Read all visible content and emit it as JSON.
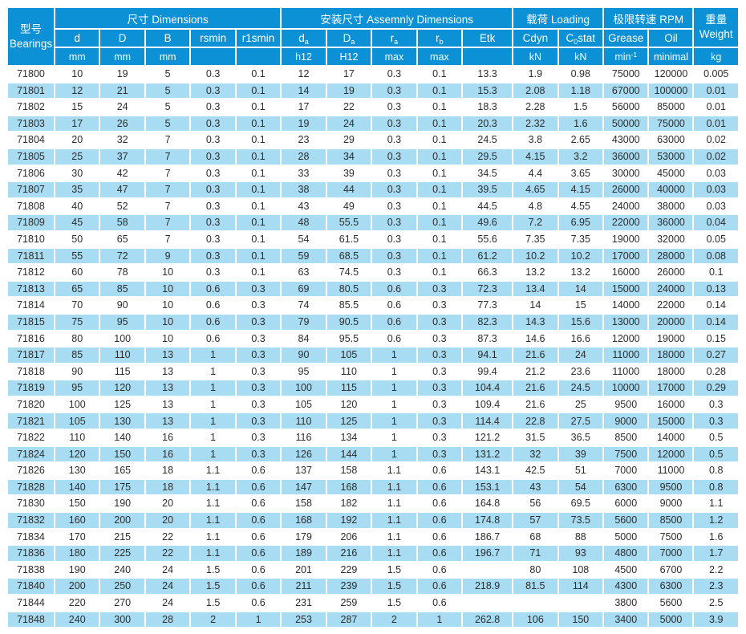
{
  "colors": {
    "header-blue": "#0c91d6",
    "row-alt-blue": "#a8dcf3",
    "header-text": "#ffffff",
    "body-text": "#2d2d2d",
    "page-bg": "#ffffff"
  },
  "header": {
    "model_cn": "型号",
    "model_en": "Bearings",
    "groups": [
      {
        "label": "尺寸 Dimensions"
      },
      {
        "label": "安装尺寸 Assemnly Dimensions"
      },
      {
        "label": "载荷 Loading"
      },
      {
        "label": "极限转速 RPM"
      }
    ],
    "weight_cn": "重量",
    "weight_en": "Weight",
    "weight_unit": "kg",
    "subcols": [
      {
        "id": "d",
        "parts": [
          [
            "t",
            "d"
          ]
        ],
        "unit_parts": [
          [
            "t",
            "mm"
          ]
        ]
      },
      {
        "id": "D",
        "parts": [
          [
            "t",
            "D"
          ]
        ],
        "unit_parts": [
          [
            "t",
            "mm"
          ]
        ]
      },
      {
        "id": "B",
        "parts": [
          [
            "t",
            "B"
          ]
        ],
        "unit_parts": [
          [
            "t",
            "mm"
          ]
        ]
      },
      {
        "id": "rsmin",
        "parts": [
          [
            "t",
            "rsmin"
          ]
        ],
        "unit_parts": []
      },
      {
        "id": "r1smin",
        "parts": [
          [
            "t",
            "r1smin"
          ]
        ],
        "unit_parts": []
      },
      {
        "id": "da",
        "parts": [
          [
            "t",
            "d"
          ],
          [
            "b",
            "a"
          ]
        ],
        "unit_parts": [
          [
            "t",
            "h12"
          ]
        ]
      },
      {
        "id": "Da",
        "parts": [
          [
            "t",
            "D"
          ],
          [
            "b",
            "a"
          ]
        ],
        "unit_parts": [
          [
            "t",
            "H12"
          ]
        ]
      },
      {
        "id": "ra",
        "parts": [
          [
            "t",
            "r"
          ],
          [
            "b",
            "a"
          ]
        ],
        "unit_parts": [
          [
            "t",
            "max"
          ]
        ]
      },
      {
        "id": "rb",
        "parts": [
          [
            "t",
            "r"
          ],
          [
            "b",
            "b"
          ]
        ],
        "unit_parts": [
          [
            "t",
            "max"
          ]
        ]
      },
      {
        "id": "Etk",
        "parts": [
          [
            "t",
            "Etk"
          ]
        ],
        "unit_parts": []
      },
      {
        "id": "Cdyn",
        "parts": [
          [
            "t",
            "Cdyn"
          ]
        ],
        "unit_parts": [
          [
            "t",
            "kN"
          ]
        ]
      },
      {
        "id": "C0stat",
        "parts": [
          [
            "t",
            "C"
          ],
          [
            "b",
            "0"
          ],
          [
            "t",
            "stat"
          ]
        ],
        "unit_parts": [
          [
            "t",
            "kN"
          ]
        ]
      },
      {
        "id": "Grease",
        "parts": [
          [
            "t",
            "Grease"
          ]
        ],
        "unit_parts": [
          [
            "t",
            "min"
          ],
          [
            "p",
            "-1"
          ]
        ]
      },
      {
        "id": "Oil",
        "parts": [
          [
            "t",
            "Oil"
          ]
        ],
        "unit_parts": [
          [
            "t",
            "minimal"
          ]
        ]
      }
    ]
  },
  "rows": [
    [
      "71800",
      "10",
      "19",
      "5",
      "0.3",
      "0.1",
      "12",
      "17",
      "0.3",
      "0.1",
      "13.3",
      "1.9",
      "0.98",
      "75000",
      "120000",
      "0.005"
    ],
    [
      "71801",
      "12",
      "21",
      "5",
      "0.3",
      "0.1",
      "14",
      "19",
      "0.3",
      "0.1",
      "15.3",
      "2.08",
      "1.18",
      "67000",
      "100000",
      "0.01"
    ],
    [
      "71802",
      "15",
      "24",
      "5",
      "0.3",
      "0.1",
      "17",
      "22",
      "0.3",
      "0.1",
      "18.3",
      "2.28",
      "1.5",
      "56000",
      "85000",
      "0.01"
    ],
    [
      "71803",
      "17",
      "26",
      "5",
      "0.3",
      "0.1",
      "19",
      "24",
      "0.3",
      "0.1",
      "20.3",
      "2.32",
      "1.6",
      "50000",
      "75000",
      "0.01"
    ],
    [
      "71804",
      "20",
      "32",
      "7",
      "0.3",
      "0.1",
      "23",
      "29",
      "0.3",
      "0.1",
      "24.5",
      "3.8",
      "2.65",
      "43000",
      "63000",
      "0.02"
    ],
    [
      "71805",
      "25",
      "37",
      "7",
      "0.3",
      "0.1",
      "28",
      "34",
      "0.3",
      "0.1",
      "29.5",
      "4.15",
      "3.2",
      "36000",
      "53000",
      "0.02"
    ],
    [
      "71806",
      "30",
      "42",
      "7",
      "0.3",
      "0.1",
      "33",
      "39",
      "0.3",
      "0.1",
      "34.5",
      "4.4",
      "3.65",
      "30000",
      "45000",
      "0.03"
    ],
    [
      "71807",
      "35",
      "47",
      "7",
      "0.3",
      "0.1",
      "38",
      "44",
      "0.3",
      "0.1",
      "39.5",
      "4.65",
      "4.15",
      "26000",
      "40000",
      "0.03"
    ],
    [
      "71808",
      "40",
      "52",
      "7",
      "0.3",
      "0.1",
      "43",
      "49",
      "0.3",
      "0.1",
      "44.5",
      "4.8",
      "4.55",
      "24000",
      "38000",
      "0.03"
    ],
    [
      "71809",
      "45",
      "58",
      "7",
      "0.3",
      "0.1",
      "48",
      "55.5",
      "0.3",
      "0.1",
      "49.6",
      "7.2",
      "6.95",
      "22000",
      "36000",
      "0.04"
    ],
    [
      "71810",
      "50",
      "65",
      "7",
      "0.3",
      "0.1",
      "54",
      "61.5",
      "0.3",
      "0.1",
      "55.6",
      "7.35",
      "7.35",
      "19000",
      "32000",
      "0.05"
    ],
    [
      "71811",
      "55",
      "72",
      "9",
      "0.3",
      "0.1",
      "59",
      "68.5",
      "0.3",
      "0.1",
      "61.2",
      "10.2",
      "10.2",
      "17000",
      "28000",
      "0.08"
    ],
    [
      "71812",
      "60",
      "78",
      "10",
      "0.3",
      "0.1",
      "63",
      "74.5",
      "0.3",
      "0.1",
      "66.3",
      "13.2",
      "13.2",
      "16000",
      "26000",
      "0.1"
    ],
    [
      "71813",
      "65",
      "85",
      "10",
      "0.6",
      "0.3",
      "69",
      "80.5",
      "0.6",
      "0.3",
      "72.3",
      "13.4",
      "14",
      "15000",
      "24000",
      "0.13"
    ],
    [
      "71814",
      "70",
      "90",
      "10",
      "0.6",
      "0.3",
      "74",
      "85.5",
      "0.6",
      "0.3",
      "77.3",
      "14",
      "15",
      "14000",
      "22000",
      "0.14"
    ],
    [
      "71815",
      "75",
      "95",
      "10",
      "0.6",
      "0.3",
      "79",
      "90.5",
      "0.6",
      "0.3",
      "82.3",
      "14.3",
      "15.6",
      "13000",
      "20000",
      "0.14"
    ],
    [
      "71816",
      "80",
      "100",
      "10",
      "0.6",
      "0.3",
      "84",
      "95.5",
      "0.6",
      "0.3",
      "87.3",
      "14.6",
      "16.6",
      "12000",
      "19000",
      "0.15"
    ],
    [
      "71817",
      "85",
      "110",
      "13",
      "1",
      "0.3",
      "90",
      "105",
      "1",
      "0.3",
      "94.1",
      "21.6",
      "24",
      "11000",
      "18000",
      "0.27"
    ],
    [
      "71818",
      "90",
      "115",
      "13",
      "1",
      "0.3",
      "95",
      "110",
      "1",
      "0.3",
      "99.4",
      "21.2",
      "23.6",
      "11000",
      "18000",
      "0.28"
    ],
    [
      "71819",
      "95",
      "120",
      "13",
      "1",
      "0.3",
      "100",
      "115",
      "1",
      "0.3",
      "104.4",
      "21.6",
      "24.5",
      "10000",
      "17000",
      "0.29"
    ],
    [
      "71820",
      "100",
      "125",
      "13",
      "1",
      "0.3",
      "105",
      "120",
      "1",
      "0.3",
      "109.4",
      "21.6",
      "25",
      "9500",
      "16000",
      "0.3"
    ],
    [
      "71821",
      "105",
      "130",
      "13",
      "1",
      "0.3",
      "110",
      "125",
      "1",
      "0.3",
      "114.4",
      "22.8",
      "27.5",
      "9000",
      "15000",
      "0.3"
    ],
    [
      "71822",
      "110",
      "140",
      "16",
      "1",
      "0.3",
      "116",
      "134",
      "1",
      "0.3",
      "121.2",
      "31.5",
      "36.5",
      "8500",
      "14000",
      "0.5"
    ],
    [
      "71824",
      "120",
      "150",
      "16",
      "1",
      "0.3",
      "126",
      "144",
      "1",
      "0.3",
      "131.2",
      "32",
      "39",
      "7500",
      "12000",
      "0.5"
    ],
    [
      "71826",
      "130",
      "165",
      "18",
      "1.1",
      "0.6",
      "137",
      "158",
      "1.1",
      "0.6",
      "143.1",
      "42.5",
      "51",
      "7000",
      "11000",
      "0.8"
    ],
    [
      "71828",
      "140",
      "175",
      "18",
      "1.1",
      "0.6",
      "147",
      "168",
      "1.1",
      "0.6",
      "153.1",
      "43",
      "54",
      "6300",
      "9500",
      "0.8"
    ],
    [
      "71830",
      "150",
      "190",
      "20",
      "1.1",
      "0.6",
      "158",
      "182",
      "1.1",
      "0.6",
      "164.8",
      "56",
      "69.5",
      "6000",
      "9000",
      "1.1"
    ],
    [
      "71832",
      "160",
      "200",
      "20",
      "1.1",
      "0.6",
      "168",
      "192",
      "1.1",
      "0.6",
      "174.8",
      "57",
      "73.5",
      "5600",
      "8500",
      "1.2"
    ],
    [
      "71834",
      "170",
      "215",
      "22",
      "1.1",
      "0.6",
      "179",
      "206",
      "1.1",
      "0.6",
      "186.7",
      "68",
      "88",
      "5000",
      "7500",
      "1.6"
    ],
    [
      "71836",
      "180",
      "225",
      "22",
      "1.1",
      "0.6",
      "189",
      "216",
      "1.1",
      "0.6",
      "196.7",
      "71",
      "93",
      "4800",
      "7000",
      "1.7"
    ],
    [
      "71838",
      "190",
      "240",
      "24",
      "1.5",
      "0.6",
      "201",
      "229",
      "1.5",
      "0.6",
      "",
      "80",
      "108",
      "4500",
      "6700",
      "2.2"
    ],
    [
      "71840",
      "200",
      "250",
      "24",
      "1.5",
      "0.6",
      "211",
      "239",
      "1.5",
      "0.6",
      "218.9",
      "81.5",
      "114",
      "4300",
      "6300",
      "2.3"
    ],
    [
      "71844",
      "220",
      "270",
      "24",
      "1.5",
      "0.6",
      "231",
      "259",
      "1.5",
      "0.6",
      "",
      "",
      "",
      "3800",
      "5600",
      "2.5"
    ],
    [
      "71848",
      "240",
      "300",
      "28",
      "2",
      "1",
      "253",
      "287",
      "2",
      "1",
      "262.8",
      "106",
      "150",
      "3400",
      "5000",
      "3.9"
    ]
  ]
}
